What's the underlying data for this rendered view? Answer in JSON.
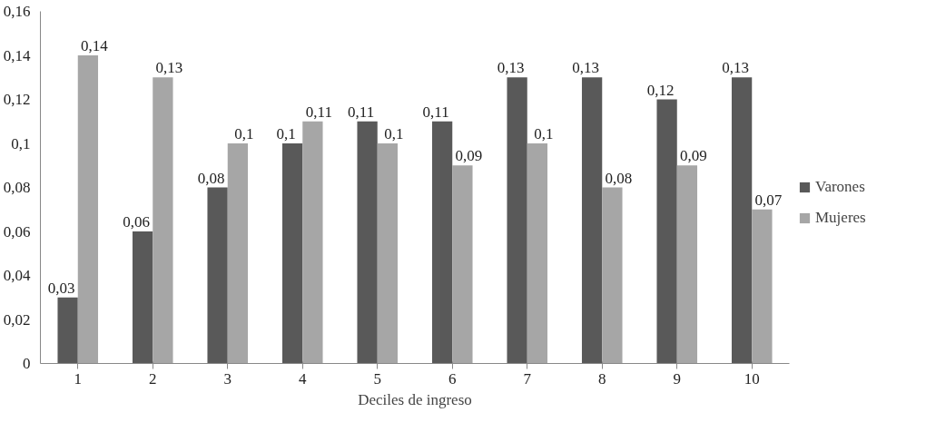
{
  "chart_data": {
    "type": "bar",
    "xlabel": "Deciles de ingreso",
    "categories": [
      "1",
      "2",
      "3",
      "4",
      "5",
      "6",
      "7",
      "8",
      "9",
      "10"
    ],
    "series": [
      {
        "name": "Varones",
        "color": "#595959",
        "values": [
          0.03,
          0.06,
          0.08,
          0.1,
          0.11,
          0.11,
          0.13,
          0.13,
          0.12,
          0.13
        ],
        "value_labels": [
          "0,03",
          "0,06",
          "0,08",
          "0,1",
          "0,11",
          "0,11",
          "0,13",
          "0,13",
          "0,12",
          "0,13"
        ]
      },
      {
        "name": "Mujeres",
        "color": "#a6a6a6",
        "values": [
          0.14,
          0.13,
          0.1,
          0.11,
          0.1,
          0.09,
          0.1,
          0.08,
          0.09,
          0.07
        ],
        "value_labels": [
          "0,14",
          "0,13",
          "0,1",
          "0,11",
          "0,1",
          "0,09",
          "0,1",
          "0,08",
          "0,09",
          "0,07"
        ]
      }
    ],
    "ylim": [
      0,
      0.16
    ],
    "yticks": [
      0,
      {
        "value": 0.02,
        "label": "0,02"
      },
      {
        "value": 0.04,
        "label": "0,04"
      },
      {
        "value": 0.06,
        "label": "0,06"
      },
      {
        "value": 0.08,
        "label": "0,08"
      },
      {
        "value": 0.1,
        "label": "0,1"
      },
      {
        "value": 0.12,
        "label": "0,12"
      },
      {
        "value": 0.14,
        "label": "0,14"
      },
      {
        "value": 0.16,
        "label": "0,16"
      }
    ],
    "grid": false,
    "legend": "right"
  }
}
